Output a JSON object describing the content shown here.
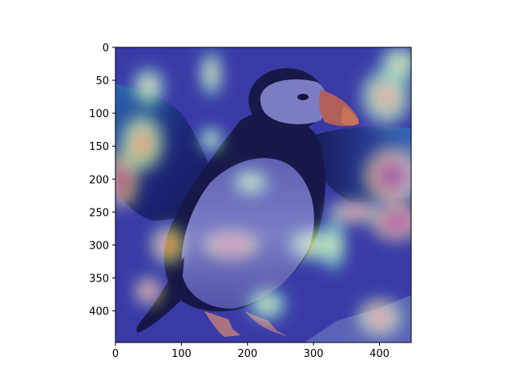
{
  "figure": {
    "type": "image-heatmap-overlay",
    "description_visible": "Grad-CAM style heatmap over puffin photo"
  },
  "axes": {
    "x_ticks": [
      "0",
      "100",
      "200",
      "300",
      "400"
    ],
    "y_ticks": [
      "0",
      "50",
      "100",
      "150",
      "200",
      "250",
      "300",
      "350",
      "400"
    ],
    "x_range": [
      0,
      448
    ],
    "y_range": [
      0,
      448
    ],
    "colormap": "jet"
  },
  "heat_spots": [
    {
      "x": 10,
      "y": 200,
      "rx": 25,
      "ry": 45,
      "level": 0.95
    },
    {
      "x": 40,
      "y": 145,
      "rx": 35,
      "ry": 45,
      "level": 0.6
    },
    {
      "x": 175,
      "y": 300,
      "rx": 45,
      "ry": 22,
      "level": 0.9
    },
    {
      "x": 420,
      "y": 195,
      "rx": 45,
      "ry": 45,
      "level": 1.0
    },
    {
      "x": 425,
      "y": 265,
      "rx": 40,
      "ry": 30,
      "level": 0.95
    },
    {
      "x": 360,
      "y": 250,
      "rx": 40,
      "ry": 18,
      "level": 0.7
    },
    {
      "x": 80,
      "y": 300,
      "rx": 28,
      "ry": 30,
      "level": 0.7
    },
    {
      "x": 50,
      "y": 370,
      "rx": 22,
      "ry": 22,
      "level": 0.75
    },
    {
      "x": 50,
      "y": 60,
      "rx": 25,
      "ry": 30,
      "level": 0.45
    },
    {
      "x": 145,
      "y": 40,
      "rx": 18,
      "ry": 35,
      "level": 0.45
    },
    {
      "x": 145,
      "y": 140,
      "rx": 18,
      "ry": 20,
      "level": 0.4
    },
    {
      "x": 410,
      "y": 75,
      "rx": 40,
      "ry": 45,
      "level": 0.55
    },
    {
      "x": 430,
      "y": 25,
      "rx": 30,
      "ry": 30,
      "level": 0.45
    },
    {
      "x": 205,
      "y": 205,
      "rx": 28,
      "ry": 20,
      "level": 0.4
    },
    {
      "x": 300,
      "y": 300,
      "rx": 40,
      "ry": 25,
      "level": 0.45
    },
    {
      "x": 400,
      "y": 410,
      "rx": 35,
      "ry": 30,
      "level": 0.7
    },
    {
      "x": 230,
      "y": 390,
      "rx": 30,
      "ry": 25,
      "level": 0.4
    },
    {
      "x": 330,
      "y": 300,
      "rx": 20,
      "ry": 40,
      "level": 0.4
    }
  ],
  "colors": {
    "base_blue": "#3a3ab0",
    "puffin_black": "#14143c",
    "puffin_white": "#8c8cc8",
    "beak_orange": "#e07040"
  }
}
